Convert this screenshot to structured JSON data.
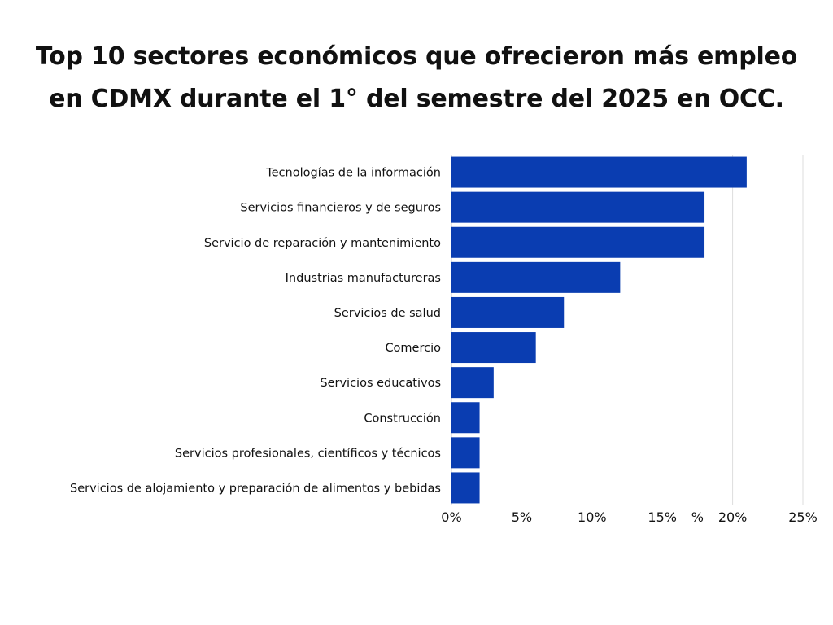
{
  "chart_data": {
    "type": "bar",
    "orientation": "horizontal",
    "title_lines": [
      "Top 10 sectores económicos que ofrecieron más empleo",
      "en CDMX durante el 1° del semestre del 2025 en OCC."
    ],
    "categories": [
      "Tecnologías de la información",
      "Servicios financieros y de seguros",
      "Servicio de reparación y mantenimiento",
      "Industrias manufactureras",
      "Servicios de salud",
      "Comercio",
      "Servicios educativos",
      "Construcción",
      "Servicios profesionales, científicos y técnicos",
      "Servicios de alojamiento y preparación de alimentos y bebidas"
    ],
    "values": [
      21,
      18,
      18,
      12,
      8,
      6,
      3,
      2,
      2,
      2
    ],
    "xlim": [
      0,
      25
    ],
    "ticks": [
      {
        "value": 0,
        "label": "0%"
      },
      {
        "value": 5,
        "label": "5%"
      },
      {
        "value": 10,
        "label": "10%"
      },
      {
        "value": 15,
        "label": "15%"
      },
      {
        "value": 17.5,
        "label": "%"
      },
      {
        "value": 20,
        "label": "20%"
      },
      {
        "value": 25,
        "label": "25%"
      }
    ],
    "gridlines": [
      20,
      25
    ],
    "grid": true,
    "legend": "none",
    "bar_color": "#0a3db1",
    "grid_color": "#dddddd"
  }
}
